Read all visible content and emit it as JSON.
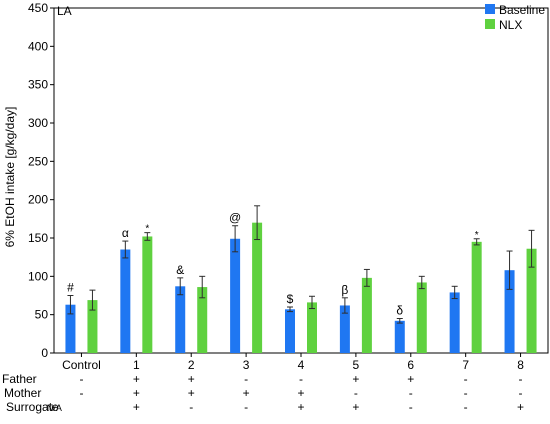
{
  "chart_data": {
    "type": "bar",
    "panel_label": "LA",
    "ylabel": "6% EtOH intake [g/kg/day]",
    "xlabel": "",
    "ylim": [
      0,
      450
    ],
    "yticks": [
      0,
      50,
      100,
      150,
      200,
      250,
      300,
      350,
      400,
      450
    ],
    "grid": false,
    "legend_position": "top-right",
    "categories": [
      "Control",
      "1",
      "2",
      "3",
      "4",
      "5",
      "6",
      "7",
      "8"
    ],
    "series": [
      {
        "name": "Baseline",
        "color": "#1f77f2",
        "values": [
          63,
          135,
          87,
          149,
          57,
          62,
          42,
          79,
          108
        ],
        "errors": [
          12,
          11,
          11,
          17,
          3,
          10,
          3,
          8,
          25
        ],
        "annotations": [
          "#",
          "α",
          "&",
          "@",
          "$",
          "β",
          "δ",
          "",
          ""
        ]
      },
      {
        "name": "NLX",
        "color": "#5fd13f",
        "values": [
          69,
          152,
          86,
          170,
          66,
          98,
          92,
          145,
          136
        ],
        "errors": [
          13,
          5,
          14,
          22,
          8,
          11,
          8,
          4,
          24
        ],
        "annotations": [
          "",
          "*",
          "",
          "",
          "",
          "",
          "",
          "*",
          ""
        ]
      }
    ],
    "genotype_table": {
      "rows": [
        {
          "label": "Father",
          "values": [
            "-",
            "+",
            "+",
            "-",
            "-",
            "+",
            "+",
            "-",
            "-"
          ]
        },
        {
          "label": "Mother",
          "values": [
            "-",
            "+",
            "+",
            "+",
            "+",
            "-",
            "-",
            "-",
            "-"
          ]
        },
        {
          "label": "Surrogate",
          "values": [
            "N/A",
            "+",
            "-",
            "-",
            "+",
            "+",
            "-",
            "-",
            "+"
          ]
        }
      ]
    }
  }
}
